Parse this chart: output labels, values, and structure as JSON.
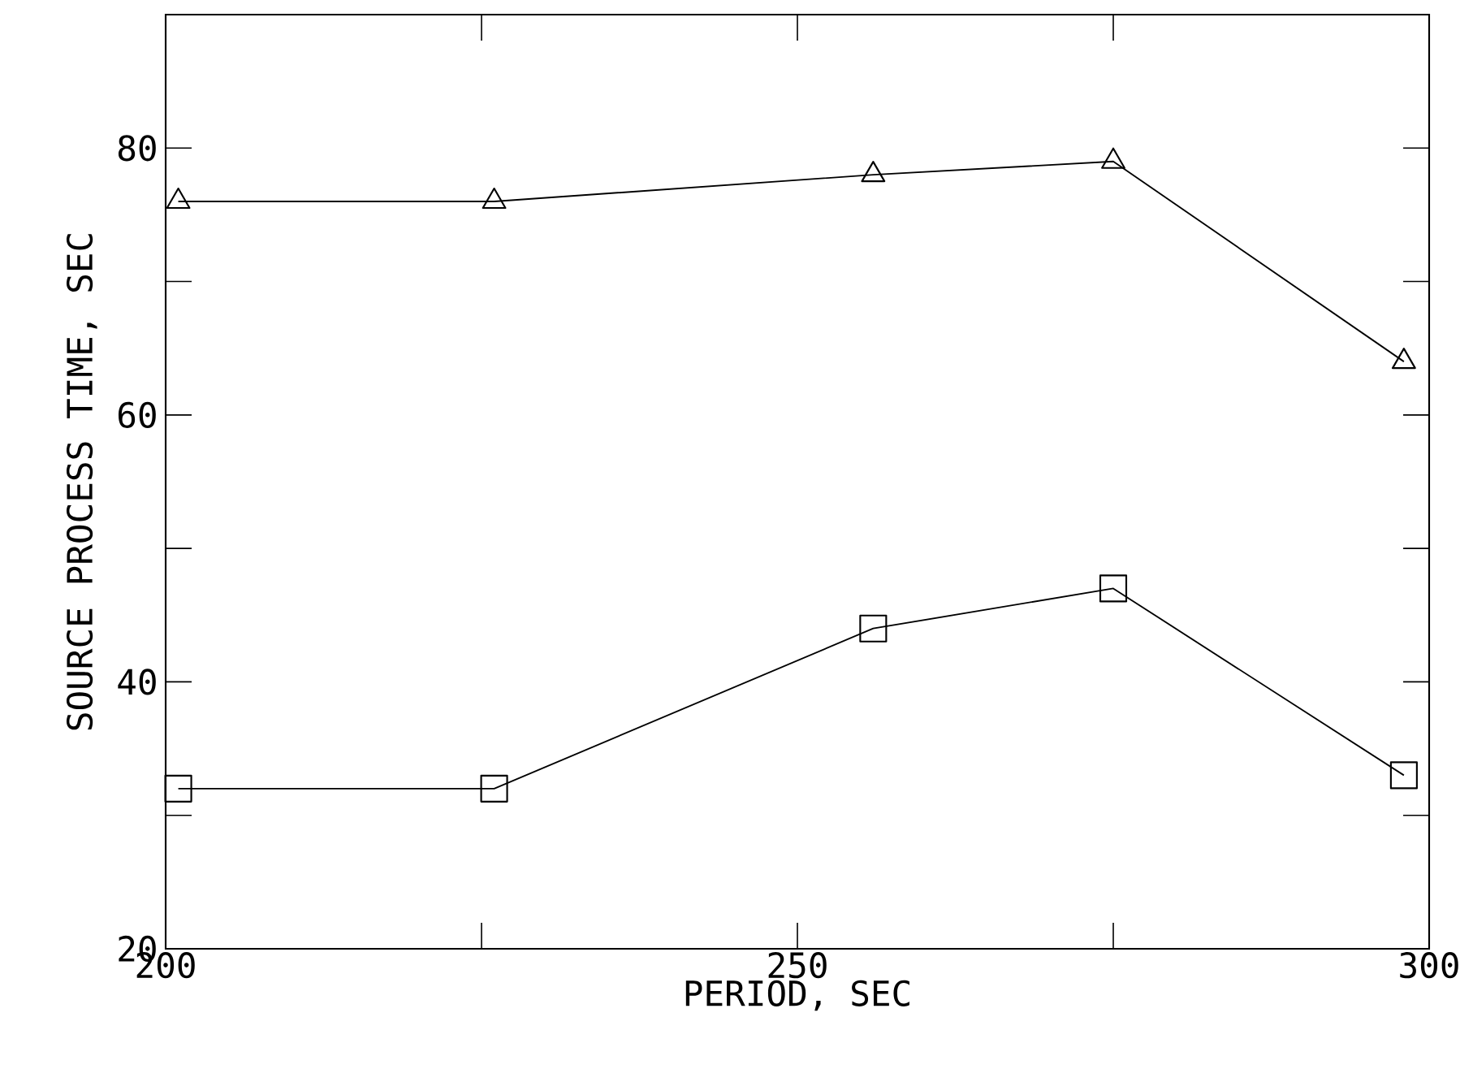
{
  "chart_data": {
    "type": "line",
    "xlabel": "PERIOD, SEC",
    "ylabel": "SOURCE PROCESS TIME, SEC",
    "xlim": [
      200,
      300
    ],
    "ylim": [
      20,
      90
    ],
    "xticks": [
      200,
      {
        "value": 225,
        "label": null
      },
      250,
      {
        "value": 275,
        "label": null
      },
      300
    ],
    "yticks": [
      20,
      {
        "value": 30,
        "label": null
      },
      40,
      {
        "value": 50,
        "label": null
      },
      60,
      {
        "value": 70,
        "label": null
      },
      80
    ],
    "grid": false,
    "series": [
      {
        "marker": "triangle",
        "color": "#000000",
        "x": [
          201,
          226,
          256,
          275,
          298
        ],
        "values": [
          76,
          76,
          78,
          79,
          64
        ]
      },
      {
        "marker": "square",
        "color": "#000000",
        "x": [
          201,
          226,
          256,
          275,
          298
        ],
        "values": [
          32,
          32,
          44,
          47,
          33
        ]
      }
    ]
  }
}
